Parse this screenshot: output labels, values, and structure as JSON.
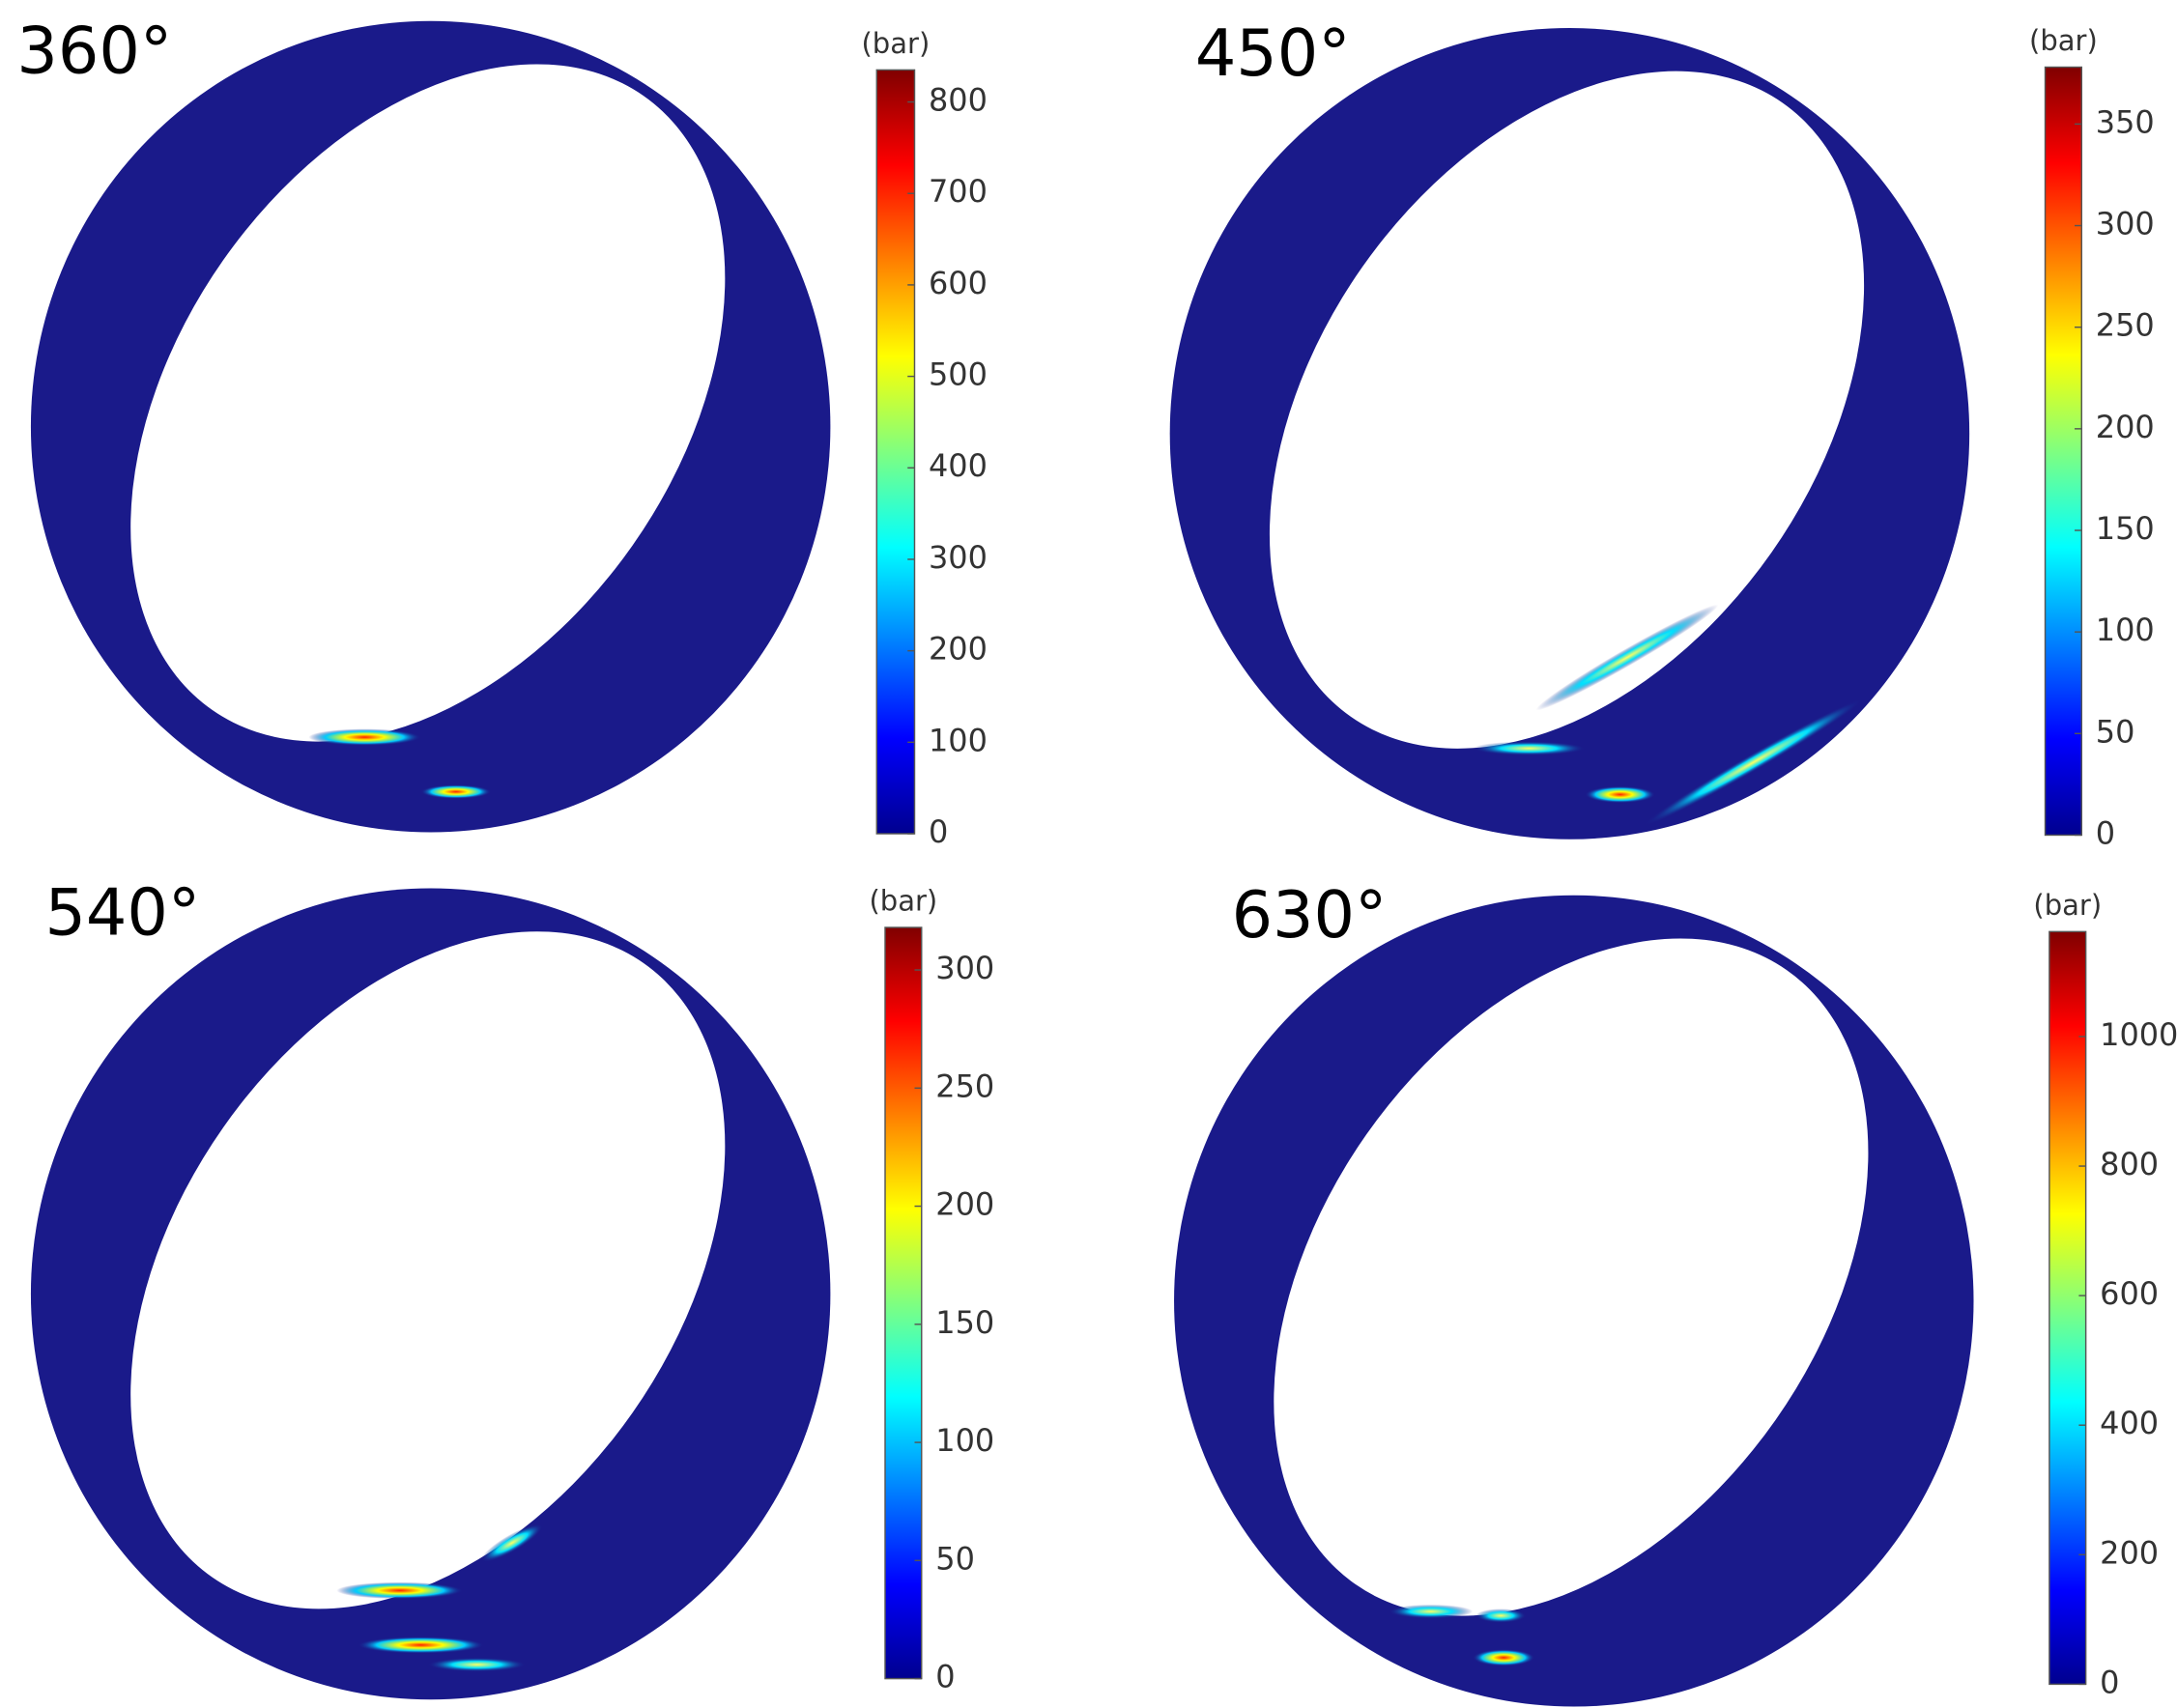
{
  "chart_data": [
    {
      "type": "contour",
      "title": "360°",
      "colormap": "jet",
      "colorbar": {
        "label": "(bar)",
        "lim": [
          0,
          835
        ],
        "ticks": [
          0,
          100,
          200,
          300,
          400,
          500,
          600,
          700,
          800
        ]
      }
    },
    {
      "type": "contour",
      "title": "450°",
      "colormap": "jet",
      "colorbar": {
        "label": "(bar)",
        "lim": [
          0,
          378
        ],
        "ticks": [
          0,
          50,
          100,
          150,
          200,
          250,
          300,
          350
        ]
      }
    },
    {
      "type": "contour",
      "title": "540°",
      "colormap": "jet",
      "colorbar": {
        "label": "(bar)",
        "lim": [
          0,
          318
        ],
        "ticks": [
          0,
          50,
          100,
          150,
          200,
          250,
          300
        ]
      }
    },
    {
      "type": "contour",
      "title": "630°",
      "colormap": "jet",
      "colorbar": {
        "label": "(bar)",
        "lim": [
          0,
          1162
        ],
        "ticks": [
          0,
          200,
          400,
          600,
          800,
          1000
        ]
      }
    }
  ]
}
